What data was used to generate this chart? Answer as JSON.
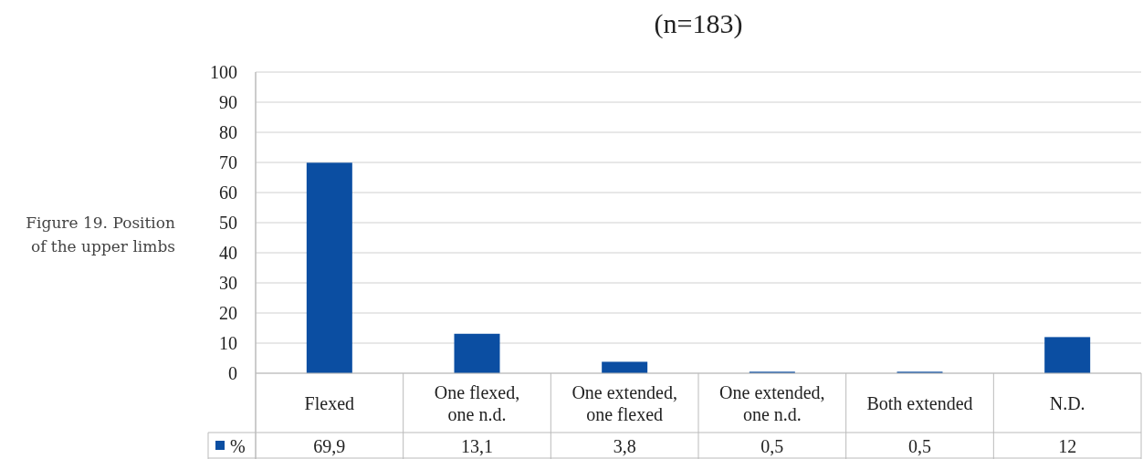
{
  "chart_data": {
    "type": "bar",
    "title": "(n=183)",
    "annotations": [
      "Figure 19. Position of the upper limbs"
    ],
    "categories": [
      "Flexed",
      "One flexed, one n.d.",
      "One extended, one flexed",
      "One extended, one n.d.",
      "Both extended",
      "N.D."
    ],
    "series": [
      {
        "name": "%",
        "color": "#0b4ea2",
        "values": [
          69.9,
          13.1,
          3.8,
          0.5,
          0.5,
          12
        ],
        "value_labels": [
          "69,9",
          "13,1",
          "3,8",
          "0,5",
          "0,5",
          "12"
        ]
      }
    ],
    "ylim": [
      0,
      100
    ],
    "yticks": [
      0,
      10,
      20,
      30,
      40,
      50,
      60,
      70,
      80,
      90,
      100
    ],
    "grid": "y",
    "legend": "bottom"
  }
}
